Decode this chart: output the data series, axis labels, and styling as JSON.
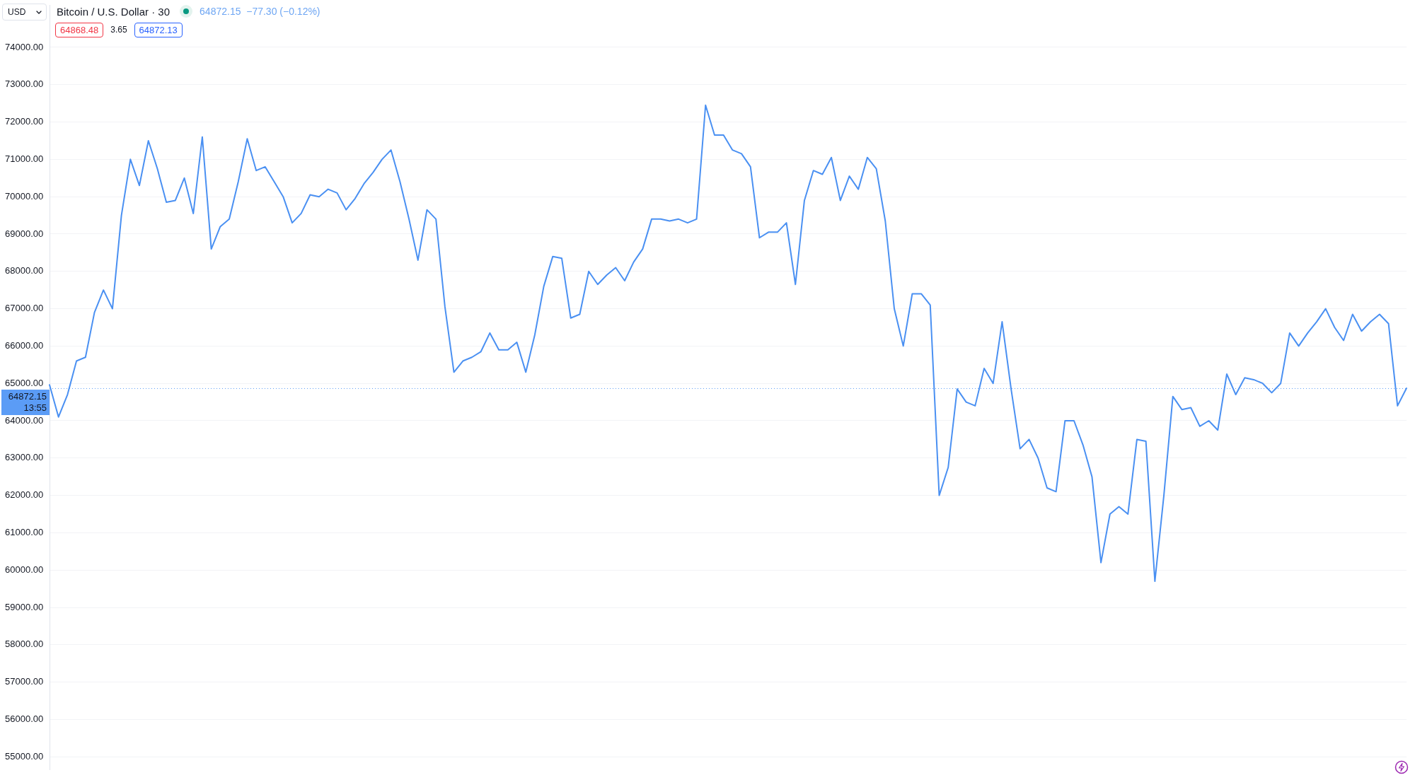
{
  "chart_data": {
    "type": "line",
    "title": "Bitcoin / U.S. Dollar · 30",
    "subtitle": "64872.15  −77.30 (−0.12%)",
    "ylabel": "USD",
    "annotations": [
      "64868.48",
      "3.65",
      "64872.13",
      "13:55"
    ],
    "categories": [
      null,
      null,
      null,
      null,
      null,
      null,
      null,
      null,
      null,
      null,
      null,
      null,
      null,
      null,
      null,
      null,
      null,
      null,
      null,
      null,
      null,
      null,
      null,
      null,
      null,
      null,
      null,
      null,
      null,
      null,
      null,
      null,
      null,
      null,
      null,
      null,
      null,
      null,
      null,
      null,
      null,
      null,
      null,
      null,
      null,
      null,
      null,
      null,
      null,
      null,
      null,
      null,
      null,
      null,
      null,
      null,
      null,
      null,
      null,
      null,
      null,
      null,
      null,
      null,
      null,
      null,
      null,
      null,
      null,
      null,
      null,
      null,
      null,
      null,
      null,
      null,
      null,
      null,
      null,
      null,
      null,
      null,
      null,
      null,
      null,
      null,
      null,
      null,
      null,
      null,
      null,
      null,
      null,
      null,
      null,
      null,
      null,
      null,
      null,
      null,
      null,
      null,
      null,
      null,
      null,
      null,
      null,
      null,
      null,
      null,
      null,
      null,
      null,
      null,
      null,
      null,
      null,
      null,
      null,
      null,
      null,
      null,
      null,
      null,
      null,
      null,
      null,
      null,
      null,
      null,
      null,
      null,
      null,
      null,
      null,
      null,
      null,
      null,
      null,
      null,
      null,
      null,
      null,
      null,
      null,
      null,
      null,
      null,
      null,
      null,
      null,
      null
    ],
    "values": [
      64960,
      64100,
      64700,
      65600,
      65700,
      66900,
      67500,
      67000,
      69500,
      71000,
      70300,
      71500,
      70750,
      69850,
      69900,
      70500,
      69550,
      71600,
      68600,
      69200,
      69400,
      70400,
      71550,
      70700,
      70800,
      70400,
      70000,
      69300,
      69550,
      70050,
      70000,
      70200,
      70100,
      69650,
      69950,
      70350,
      70650,
      71000,
      71250,
      70400,
      69400,
      68300,
      69650,
      69400,
      67050,
      65300,
      65600,
      65700,
      65850,
      66350,
      65900,
      65900,
      66100,
      65300,
      66300,
      67600,
      68400,
      68350,
      66750,
      66850,
      68000,
      67650,
      67900,
      68100,
      67750,
      68250,
      68600,
      69400,
      69400,
      69350,
      69400,
      69300,
      69400,
      72450,
      71650,
      71650,
      71250,
      71150,
      70800,
      68900,
      69050,
      69050,
      69300,
      67650,
      69900,
      70700,
      70600,
      71050,
      69900,
      70550,
      70200,
      71050,
      70750,
      69350,
      67000,
      66000,
      67400,
      67400,
      67100,
      62000,
      62750,
      64850,
      64500,
      64400,
      65400,
      65000,
      66650,
      64850,
      63250,
      63500,
      63000,
      62200,
      62100,
      64000,
      64000,
      63350,
      62500,
      60200,
      61500,
      61700,
      61500,
      63500,
      63450,
      59700,
      62000,
      64650,
      64300,
      64350,
      63850,
      64000,
      63750,
      65250,
      64700,
      65150,
      65100,
      65000,
      64750,
      65000,
      66350,
      66000,
      66350,
      66650,
      67000,
      66500,
      66150,
      66850,
      66400,
      66650,
      66850,
      66600,
      64400,
      64870
    ],
    "color": "#4a90f2",
    "ylim": [
      54660,
      75120
    ],
    "yticks": [
      {
        "value": 55000,
        "label": "55000.00"
      },
      {
        "value": 56000,
        "label": "56000.00"
      },
      {
        "value": 57000,
        "label": "57000.00"
      },
      {
        "value": 58000,
        "label": "58000.00"
      },
      {
        "value": 59000,
        "label": "59000.00"
      },
      {
        "value": 60000,
        "label": "60000.00"
      },
      {
        "value": 61000,
        "label": "61000.00"
      },
      {
        "value": 62000,
        "label": "62000.00"
      },
      {
        "value": 63000,
        "label": "63000.00"
      },
      {
        "value": 64000,
        "label": "64000.00"
      },
      {
        "value": 65000,
        "label": "65000.00"
      },
      {
        "value": 66000,
        "label": "66000.00"
      },
      {
        "value": 67000,
        "label": "67000.00"
      },
      {
        "value": 68000,
        "label": "68000.00"
      },
      {
        "value": 69000,
        "label": "69000.00"
      },
      {
        "value": 70000,
        "label": "70000.00"
      },
      {
        "value": 71000,
        "label": "71000.00"
      },
      {
        "value": 72000,
        "label": "72000.00"
      },
      {
        "value": 73000,
        "label": "73000.00"
      },
      {
        "value": 74000,
        "label": "74000.00"
      }
    ],
    "grid": "y",
    "ref_lines": [
      {
        "axis": "y",
        "value": 64872.15,
        "label": "64872.15",
        "color": "#5b9cf6",
        "line_style": "dotted"
      }
    ]
  }
}
